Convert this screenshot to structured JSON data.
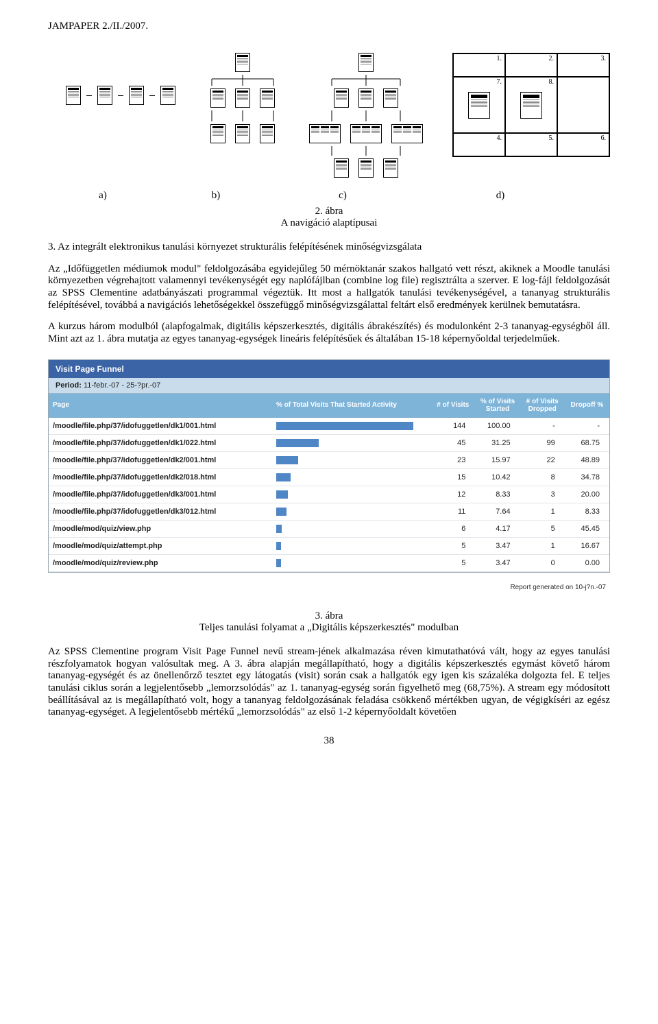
{
  "header": "JAMPAPER 2./II./2007.",
  "diagram_d_numbers": [
    "1.",
    "2.",
    "3.",
    "7.",
    "8.",
    "4.",
    "5.",
    "6."
  ],
  "labels": {
    "a": "a)",
    "b": "b)",
    "c": "c)",
    "d": "d)"
  },
  "caption1_line1": "2. ábra",
  "caption1_line2": "A navigáció alaptípusai",
  "para1": "3. Az integrált elektronikus tanulási környezet strukturális felépítésének minőségvizsgálata",
  "para2": "Az „Időfüggetlen médiumok modul\" feldolgozásába egyidejűleg 50 mérnöktanár szakos hallgató vett részt, akiknek a Moodle tanulási környezetben végrehajtott valamennyi tevékenységét egy naplófájlban (combine log file) regisztrálta a szerver. E log-fájl feldolgozását az SPSS Clementine adatbányászati programmal végeztük. Itt most a hallgatók tanulási tevékenységével, a tananyag strukturális felépítésével, továbbá a navigációs lehetőségekkel összefüggő minőségvizsgálattal feltárt első eredmények kerülnek bemutatásra.",
  "para3": "A kurzus három modulból (alapfogalmak, digitális képszerkesztés, digitális ábrakészítés) és modulonként 2-3 tananyag-egységből áll. Mint azt az 1. ábra mutatja az egyes tananyag-egységek lineáris felépítésűek és általában 15-18 képernyőoldal terjedelműek.",
  "funnel": {
    "title": "Visit Page Funnel",
    "period_label": "Period:",
    "period_value": "11-febr.-07 - 25-?pr.-07",
    "title_bg": "#3b64a6",
    "title_color": "#ffffff",
    "period_bg": "#c9dceb",
    "header_bg": "#7fb4d9",
    "header_color": "#ffffff",
    "bar_color": "#4f86c6",
    "row_border": "#e0e6ea",
    "columns": [
      "Page",
      "% of Total Visits That Started Activity",
      "# of Visits",
      "% of Visits Started",
      "# of Visits Dropped",
      "Dropoff %"
    ],
    "bar_max_pct": 100,
    "rows": [
      {
        "page": "/moodle/file.php/37/idofuggetlen/dk1/001.html",
        "pct": 100.0,
        "visits": 144,
        "pct_started": "100.00",
        "dropped": "-",
        "dropoff": "-"
      },
      {
        "page": "/moodle/file.php/37/idofuggetlen/dk1/022.html",
        "pct": 31.25,
        "visits": 45,
        "pct_started": "31.25",
        "dropped": "99",
        "dropoff": "68.75"
      },
      {
        "page": "/moodle/file.php/37/idofuggetlen/dk2/001.html",
        "pct": 15.97,
        "visits": 23,
        "pct_started": "15.97",
        "dropped": "22",
        "dropoff": "48.89"
      },
      {
        "page": "/moodle/file.php/37/idofuggetlen/dk2/018.html",
        "pct": 10.42,
        "visits": 15,
        "pct_started": "10.42",
        "dropped": "8",
        "dropoff": "34.78"
      },
      {
        "page": "/moodle/file.php/37/idofuggetlen/dk3/001.html",
        "pct": 8.33,
        "visits": 12,
        "pct_started": "8.33",
        "dropped": "3",
        "dropoff": "20.00"
      },
      {
        "page": "/moodle/file.php/37/idofuggetlen/dk3/012.html",
        "pct": 7.64,
        "visits": 11,
        "pct_started": "7.64",
        "dropped": "1",
        "dropoff": "8.33"
      },
      {
        "page": "/moodle/mod/quiz/view.php",
        "pct": 4.17,
        "visits": 6,
        "pct_started": "4.17",
        "dropped": "5",
        "dropoff": "45.45"
      },
      {
        "page": "/moodle/mod/quiz/attempt.php",
        "pct": 3.47,
        "visits": 5,
        "pct_started": "3.47",
        "dropped": "1",
        "dropoff": "16.67"
      },
      {
        "page": "/moodle/mod/quiz/review.php",
        "pct": 3.47,
        "visits": 5,
        "pct_started": "3.47",
        "dropped": "0",
        "dropoff": "0.00"
      }
    ],
    "report_gen": "Report generated on 10-j?n.-07"
  },
  "caption2_line1": "3. ábra",
  "caption2_line2": "Teljes tanulási folyamat a „Digitális képszerkesztés\" modulban",
  "para4": "Az SPSS Clementine program Visit Page Funnel nevű stream-jének alkalmazása réven kimutathatóvá vált, hogy az egyes tanulási részfolyamatok hogyan valósultak meg. A 3. ábra alapján megállapítható, hogy a digitális képszerkesztés egymást követő három tananyag-egységét és az önellenőrző tesztet egy látogatás (visit) során csak a hallgatók egy igen kis százaléka dolgozta fel. E teljes tanulási ciklus során a legjelentősebb „lemorzsolódás\" az 1. tananyag-egység során figyelhető meg (68,75%). A stream egy módosított beállításával az is megállapítható volt, hogy a tananyag feldolgozásának feladása csökkenő mértékben ugyan, de végigkíséri az egész tananyag-egységet. A legjelentősebb mértékű „lemorzsolódás\" az első 1-2 képernyőoldalt követően",
  "page_number": "38"
}
